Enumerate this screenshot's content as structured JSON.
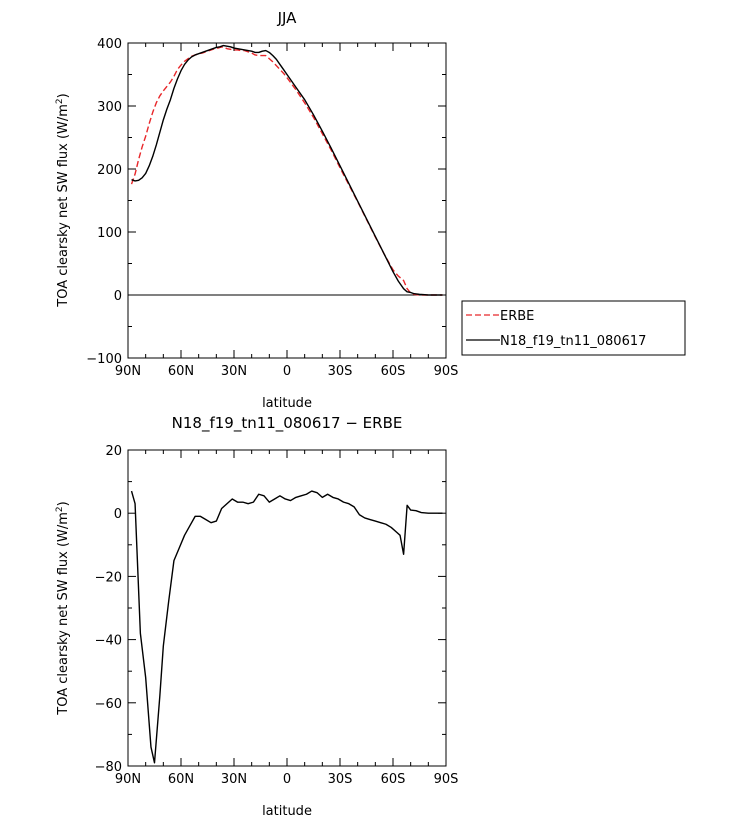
{
  "chart_data": [
    {
      "type": "line",
      "title": "JJA",
      "xlabel": "latitude",
      "ylabel": "TOA clearsky net SW flux (W/m²)",
      "ylabel_parts": [
        "TOA clearsky net SW flux (W/m",
        "2",
        ")"
      ],
      "xlim": [
        90,
        -90
      ],
      "ylim": [
        -100,
        400
      ],
      "xticks": [
        {
          "value": 90,
          "label": "90N"
        },
        {
          "value": 60,
          "label": "60N"
        },
        {
          "value": 30,
          "label": "30N"
        },
        {
          "value": 0,
          "label": "0"
        },
        {
          "value": -30,
          "label": "30S"
        },
        {
          "value": -60,
          "label": "60S"
        },
        {
          "value": -90,
          "label": "90S"
        }
      ],
      "yticks": [
        {
          "value": -100,
          "label": "−100"
        },
        {
          "value": 0,
          "label": "0"
        },
        {
          "value": 100,
          "label": "100"
        },
        {
          "value": 200,
          "label": "200"
        },
        {
          "value": 300,
          "label": "300"
        },
        {
          "value": 400,
          "label": "400"
        }
      ],
      "legend_position": "right",
      "series": [
        {
          "name": "ERBE",
          "color": "#e8272a",
          "dash": "dashed",
          "points": [
            [
              88,
              176
            ],
            [
              86,
              192
            ],
            [
              84,
              215
            ],
            [
              82,
              235
            ],
            [
              80,
              252
            ],
            [
              78,
              272
            ],
            [
              76,
              290
            ],
            [
              74,
              305
            ],
            [
              72,
              316
            ],
            [
              70,
              324
            ],
            [
              68,
              331
            ],
            [
              66,
              338
            ],
            [
              64,
              347
            ],
            [
              62,
              358
            ],
            [
              60,
              365
            ],
            [
              58,
              371
            ],
            [
              56,
              375
            ],
            [
              54,
              379
            ],
            [
              52,
              381
            ],
            [
              50,
              383
            ],
            [
              48,
              384
            ],
            [
              46,
              386
            ],
            [
              44,
              388
            ],
            [
              42,
              390
            ],
            [
              40,
              391
            ],
            [
              38,
              393
            ],
            [
              36,
              394
            ],
            [
              34,
              391
            ],
            [
              32,
              390
            ],
            [
              30,
              389
            ],
            [
              28,
              389
            ],
            [
              26,
              388
            ],
            [
              24,
              388
            ],
            [
              22,
              386
            ],
            [
              20,
              384
            ],
            [
              18,
              381
            ],
            [
              16,
              380
            ],
            [
              14,
              380
            ],
            [
              12,
              380
            ],
            [
              10,
              375
            ],
            [
              8,
              370
            ],
            [
              6,
              364
            ],
            [
              4,
              358
            ],
            [
              2,
              352
            ],
            [
              0,
              345
            ],
            [
              -5,
              326
            ],
            [
              -10,
              305
            ],
            [
              -15,
              282
            ],
            [
              -20,
              256
            ],
            [
              -25,
              230
            ],
            [
              -30,
              202
            ],
            [
              -35,
              175
            ],
            [
              -40,
              148
            ],
            [
              -45,
              120
            ],
            [
              -50,
              92
            ],
            [
              -55,
              65
            ],
            [
              -60,
              40
            ],
            [
              -63,
              30
            ],
            [
              -66,
              23
            ],
            [
              -68,
              10
            ],
            [
              -70,
              3
            ],
            [
              -72,
              1
            ],
            [
              -75,
              0
            ],
            [
              -80,
              0
            ],
            [
              -85,
              0
            ],
            [
              -88,
              0
            ]
          ]
        },
        {
          "name": "N18_f19_tn11_080617",
          "color": "#000000",
          "dash": "solid",
          "points": [
            [
              88,
              183
            ],
            [
              86,
              181
            ],
            [
              84,
              182
            ],
            [
              82,
              186
            ],
            [
              80,
              193
            ],
            [
              78,
              205
            ],
            [
              76,
              220
            ],
            [
              74,
              238
            ],
            [
              72,
              258
            ],
            [
              70,
              278
            ],
            [
              68,
              295
            ],
            [
              66,
              310
            ],
            [
              64,
              328
            ],
            [
              62,
              343
            ],
            [
              60,
              356
            ],
            [
              58,
              366
            ],
            [
              56,
              373
            ],
            [
              54,
              378
            ],
            [
              52,
              381
            ],
            [
              50,
              383
            ],
            [
              48,
              385
            ],
            [
              46,
              387
            ],
            [
              44,
              389
            ],
            [
              42,
              391
            ],
            [
              40,
              393
            ],
            [
              38,
              394
            ],
            [
              36,
              396
            ],
            [
              34,
              395
            ],
            [
              32,
              394
            ],
            [
              30,
              392
            ],
            [
              28,
              391
            ],
            [
              26,
              390
            ],
            [
              24,
              389
            ],
            [
              22,
              388
            ],
            [
              20,
              387
            ],
            [
              18,
              385
            ],
            [
              16,
              385
            ],
            [
              14,
              387
            ],
            [
              12,
              388
            ],
            [
              10,
              385
            ],
            [
              8,
              380
            ],
            [
              6,
              374
            ],
            [
              4,
              366
            ],
            [
              2,
              358
            ],
            [
              0,
              350
            ],
            [
              -5,
              330
            ],
            [
              -10,
              310
            ],
            [
              -15,
              286
            ],
            [
              -20,
              260
            ],
            [
              -25,
              233
            ],
            [
              -30,
              205
            ],
            [
              -35,
              177
            ],
            [
              -40,
              149
            ],
            [
              -45,
              121
            ],
            [
              -50,
              93
            ],
            [
              -55,
              65
            ],
            [
              -60,
              37
            ],
            [
              -63,
              22
            ],
            [
              -66,
              10
            ],
            [
              -68,
              5
            ],
            [
              -70,
              4
            ],
            [
              -72,
              2
            ],
            [
              -75,
              1
            ],
            [
              -80,
              0
            ],
            [
              -85,
              0
            ],
            [
              -88,
              0
            ]
          ]
        }
      ]
    },
    {
      "type": "line",
      "title": "N18_f19_tn11_080617 − ERBE",
      "xlabel": "latitude",
      "ylabel": "TOA clearsky net SW flux (W/m²)",
      "ylabel_parts": [
        "TOA clearsky net SW flux (W/m",
        "2",
        ")"
      ],
      "xlim": [
        90,
        -90
      ],
      "ylim": [
        -80,
        20
      ],
      "xticks": [
        {
          "value": 90,
          "label": "90N"
        },
        {
          "value": 60,
          "label": "60N"
        },
        {
          "value": 30,
          "label": "30N"
        },
        {
          "value": 0,
          "label": "0"
        },
        {
          "value": -30,
          "label": "30S"
        },
        {
          "value": -60,
          "label": "60S"
        },
        {
          "value": -90,
          "label": "90S"
        }
      ],
      "yticks": [
        {
          "value": -80,
          "label": "−80"
        },
        {
          "value": -60,
          "label": "−60"
        },
        {
          "value": -40,
          "label": "−40"
        },
        {
          "value": -20,
          "label": "−20"
        },
        {
          "value": 0,
          "label": "0"
        },
        {
          "value": 20,
          "label": "20"
        }
      ],
      "series": [
        {
          "color": "#000000",
          "dash": "solid",
          "points": [
            [
              88,
              7
            ],
            [
              86,
              3
            ],
            [
              83,
              -38
            ],
            [
              80,
              -52
            ],
            [
              77,
              -74
            ],
            [
              75,
              -79
            ],
            [
              72,
              -58
            ],
            [
              70,
              -42
            ],
            [
              67,
              -28
            ],
            [
              64,
              -15
            ],
            [
              61,
              -11
            ],
            [
              58,
              -7
            ],
            [
              55,
              -4
            ],
            [
              52,
              -1
            ],
            [
              49,
              -1
            ],
            [
              46,
              -2
            ],
            [
              43,
              -3
            ],
            [
              40,
              -2.5
            ],
            [
              37,
              1.5
            ],
            [
              34,
              3
            ],
            [
              31,
              4.5
            ],
            [
              28,
              3.5
            ],
            [
              25,
              3.5
            ],
            [
              22,
              3
            ],
            [
              19,
              3.5
            ],
            [
              16,
              6
            ],
            [
              13,
              5.5
            ],
            [
              10,
              3.5
            ],
            [
              7,
              4.5
            ],
            [
              4,
              5.5
            ],
            [
              1,
              4.5
            ],
            [
              -2,
              4
            ],
            [
              -5,
              5
            ],
            [
              -8,
              5.5
            ],
            [
              -11,
              6
            ],
            [
              -14,
              7
            ],
            [
              -17,
              6.5
            ],
            [
              -20,
              5
            ],
            [
              -23,
              6
            ],
            [
              -26,
              5
            ],
            [
              -29,
              4.5
            ],
            [
              -32,
              3.5
            ],
            [
              -35,
              3
            ],
            [
              -38,
              2
            ],
            [
              -41,
              -0.5
            ],
            [
              -44,
              -1.5
            ],
            [
              -47,
              -2
            ],
            [
              -50,
              -2.5
            ],
            [
              -53,
              -3
            ],
            [
              -56,
              -3.5
            ],
            [
              -59,
              -4.5
            ],
            [
              -62,
              -6
            ],
            [
              -64,
              -7
            ],
            [
              -66,
              -13
            ],
            [
              -68,
              2.5
            ],
            [
              -70,
              1
            ],
            [
              -73,
              0.8
            ],
            [
              -76,
              0.2
            ],
            [
              -80,
              0
            ],
            [
              -84,
              0
            ],
            [
              -88,
              0
            ]
          ]
        }
      ]
    }
  ]
}
